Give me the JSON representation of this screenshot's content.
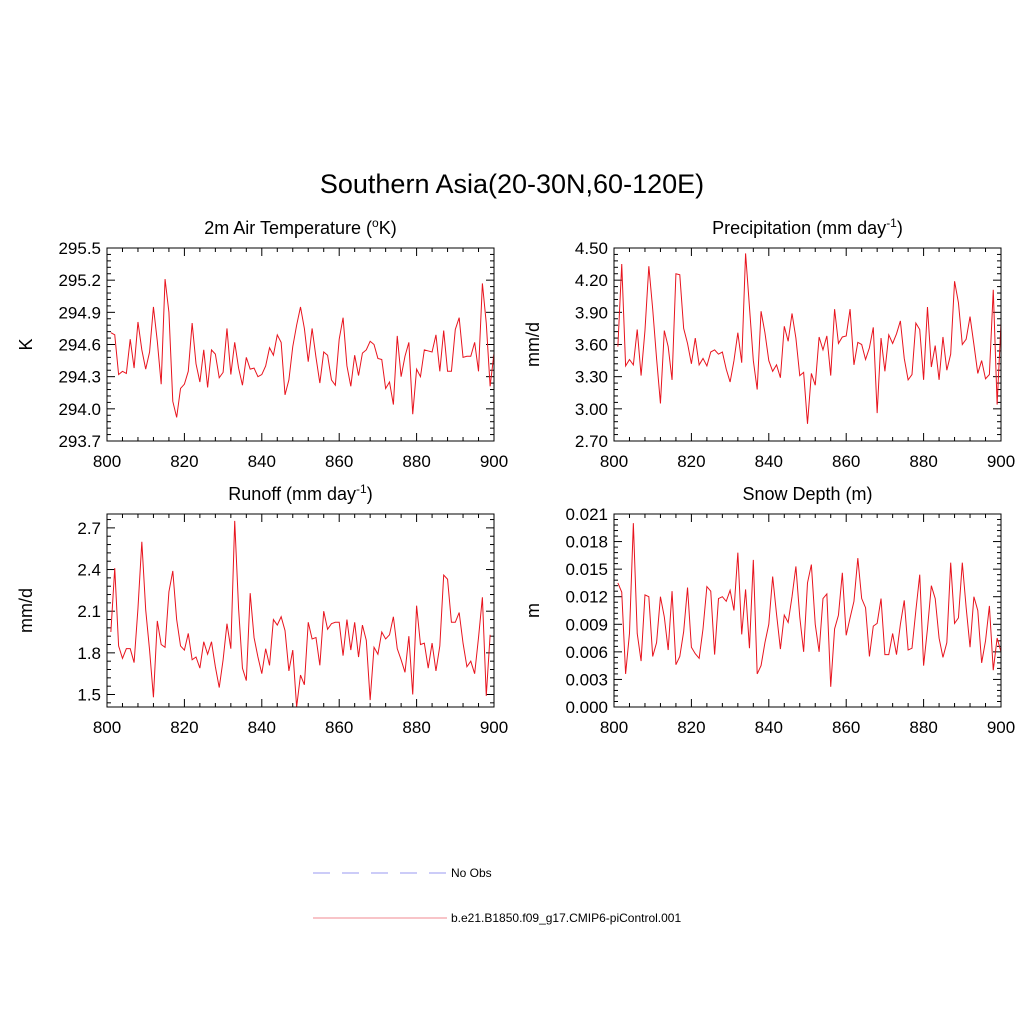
{
  "title": "Southern Asia(20-30N,60-120E)",
  "legend": [
    {
      "label": "No Obs",
      "color": "#9a9af0",
      "style": "dashed"
    },
    {
      "label": "b.e21.B1850.f09_g17.CMIP6-piControl.001",
      "color": "#f08a90",
      "style": "solid"
    }
  ],
  "series_color": "#e8141e",
  "chart_data": [
    {
      "type": "line",
      "title": "2m Air Temperature (",
      "title_sup": "o",
      "title_tail": "K)",
      "ylabel": "K",
      "xlim": [
        800,
        900
      ],
      "ylim": [
        293.7,
        295.5
      ],
      "xticks": [
        800,
        820,
        840,
        860,
        880,
        900
      ],
      "yticks": [
        "293.7",
        "294.0",
        "294.3",
        "294.6",
        "294.9",
        "295.2",
        "295.5"
      ],
      "x_start": 801,
      "values": [
        294.71,
        294.69,
        294.32,
        294.35,
        294.33,
        294.65,
        294.38,
        294.81,
        294.55,
        294.37,
        294.53,
        294.95,
        294.63,
        294.23,
        295.21,
        294.9,
        294.07,
        293.92,
        294.19,
        294.23,
        294.35,
        294.8,
        294.42,
        294.25,
        294.55,
        294.2,
        294.55,
        294.51,
        294.29,
        294.34,
        294.75,
        294.32,
        294.62,
        294.38,
        294.22,
        294.48,
        294.37,
        294.38,
        294.3,
        294.32,
        294.4,
        294.57,
        294.5,
        294.69,
        294.62,
        294.13,
        294.27,
        294.58,
        294.78,
        294.95,
        294.75,
        294.44,
        294.75,
        294.48,
        294.24,
        294.53,
        294.5,
        294.27,
        294.22,
        294.65,
        294.85,
        294.4,
        294.21,
        294.5,
        294.31,
        294.52,
        294.55,
        294.63,
        294.6,
        294.47,
        294.46,
        294.19,
        294.25,
        294.04,
        294.68,
        294.3,
        294.49,
        294.62,
        293.95,
        294.37,
        294.3,
        294.55,
        294.54,
        294.53,
        294.69,
        294.35,
        294.73,
        294.35,
        294.35,
        294.74,
        294.85,
        294.48,
        294.49,
        294.49,
        294.62,
        294.35,
        295.17,
        294.8,
        294.21,
        294.52
      ]
    },
    {
      "type": "line",
      "title": "Precipitation (mm day",
      "title_sup": "-1",
      "title_tail": ")",
      "ylabel": "mm/d",
      "xlim": [
        800,
        900
      ],
      "ylim": [
        2.7,
        4.5
      ],
      "xticks": [
        800,
        820,
        840,
        860,
        880,
        900
      ],
      "yticks": [
        "2.70",
        "3.00",
        "3.30",
        "3.60",
        "3.90",
        "4.20",
        "4.50"
      ],
      "x_start": 801,
      "values": [
        3.58,
        4.35,
        3.4,
        3.46,
        3.41,
        3.74,
        3.31,
        3.73,
        4.33,
        3.93,
        3.47,
        3.05,
        3.73,
        3.58,
        3.27,
        4.26,
        4.25,
        3.75,
        3.61,
        3.42,
        3.66,
        3.41,
        3.47,
        3.4,
        3.53,
        3.55,
        3.51,
        3.53,
        3.37,
        3.25,
        3.45,
        3.71,
        3.43,
        4.45,
        3.95,
        3.45,
        3.18,
        3.91,
        3.71,
        3.45,
        3.35,
        3.41,
        3.29,
        3.77,
        3.63,
        3.89,
        3.66,
        3.31,
        3.34,
        2.86,
        3.33,
        3.22,
        3.67,
        3.55,
        3.68,
        3.31,
        3.93,
        3.61,
        3.67,
        3.68,
        3.93,
        3.41,
        3.62,
        3.6,
        3.46,
        3.57,
        3.76,
        2.96,
        3.66,
        3.35,
        3.69,
        3.61,
        3.7,
        3.82,
        3.47,
        3.27,
        3.32,
        3.8,
        3.74,
        3.27,
        3.95,
        3.39,
        3.59,
        3.27,
        3.67,
        3.36,
        3.51,
        4.19,
        3.99,
        3.6,
        3.65,
        3.86,
        3.6,
        3.33,
        3.45,
        3.28,
        3.32,
        4.11,
        3.04,
        3.8
      ]
    },
    {
      "type": "line",
      "title": "Runoff (mm day",
      "title_sup": "-1",
      "title_tail": ")",
      "ylabel": "mm/d",
      "xlim": [
        800,
        900
      ],
      "ylim": [
        1.41,
        2.8
      ],
      "xticks": [
        800,
        820,
        840,
        860,
        880,
        900
      ],
      "yticks": [
        "1.5",
        "1.8",
        "2.1",
        "2.4",
        "2.7"
      ],
      "x_start": 801,
      "values": [
        1.95,
        2.41,
        1.85,
        1.76,
        1.83,
        1.83,
        1.73,
        2.12,
        2.6,
        2.11,
        1.82,
        1.48,
        2.03,
        1.86,
        1.84,
        2.24,
        2.39,
        2.04,
        1.85,
        1.82,
        1.94,
        1.75,
        1.77,
        1.69,
        1.88,
        1.79,
        1.88,
        1.7,
        1.55,
        1.75,
        2.01,
        1.83,
        2.75,
        2.12,
        1.69,
        1.6,
        2.23,
        1.91,
        1.77,
        1.65,
        1.83,
        1.71,
        2.04,
        2.0,
        2.06,
        1.96,
        1.67,
        1.82,
        1.41,
        1.64,
        1.57,
        2.02,
        1.9,
        1.91,
        1.71,
        2.1,
        1.97,
        2.01,
        2.02,
        2.02,
        1.78,
        2.04,
        1.82,
        2.02,
        1.77,
        2.0,
        1.89,
        1.46,
        1.84,
        1.79,
        1.95,
        1.9,
        1.93,
        2.06,
        1.83,
        1.75,
        1.66,
        1.92,
        1.5,
        2.14,
        1.86,
        1.87,
        1.69,
        1.87,
        1.67,
        1.85,
        2.36,
        2.33,
        2.02,
        2.02,
        2.09,
        1.87,
        1.7,
        1.74,
        1.65,
        1.91,
        2.2,
        1.49,
        1.93
      ]
    },
    {
      "type": "line",
      "title": "Snow Depth (m)",
      "title_sup": "",
      "title_tail": "",
      "ylabel": "m",
      "xlim": [
        800,
        900
      ],
      "ylim": [
        0.0,
        0.021
      ],
      "xticks": [
        800,
        820,
        840,
        860,
        880,
        900
      ],
      "yticks": [
        "0.000",
        "0.003",
        "0.006",
        "0.009",
        "0.012",
        "0.015",
        "0.018",
        "0.021"
      ],
      "x_start": 801,
      "values": [
        0.0135,
        0.0125,
        0.0036,
        0.008,
        0.02,
        0.008,
        0.005,
        0.0122,
        0.012,
        0.0055,
        0.007,
        0.012,
        0.0098,
        0.0062,
        0.0126,
        0.0046,
        0.0055,
        0.0082,
        0.013,
        0.0065,
        0.0058,
        0.0053,
        0.0085,
        0.0131,
        0.0126,
        0.0057,
        0.0118,
        0.012,
        0.0115,
        0.0127,
        0.0105,
        0.0168,
        0.0079,
        0.0128,
        0.0064,
        0.016,
        0.0036,
        0.0045,
        0.007,
        0.009,
        0.0142,
        0.0101,
        0.0063,
        0.01,
        0.0092,
        0.012,
        0.0153,
        0.0098,
        0.006,
        0.0135,
        0.0155,
        0.009,
        0.006,
        0.0118,
        0.0123,
        0.0022,
        0.0085,
        0.01,
        0.0146,
        0.0078,
        0.0097,
        0.0115,
        0.0162,
        0.0118,
        0.0108,
        0.0055,
        0.0088,
        0.0091,
        0.0118,
        0.0057,
        0.0057,
        0.008,
        0.0057,
        0.009,
        0.0116,
        0.0062,
        0.0064,
        0.0105,
        0.0144,
        0.0045,
        0.0085,
        0.0132,
        0.0118,
        0.0075,
        0.0054,
        0.007,
        0.0157,
        0.0091,
        0.0097,
        0.0157,
        0.0108,
        0.0065,
        0.012,
        0.0105,
        0.0048,
        0.0072,
        0.011,
        0.004,
        0.0075,
        0.006
      ]
    }
  ]
}
